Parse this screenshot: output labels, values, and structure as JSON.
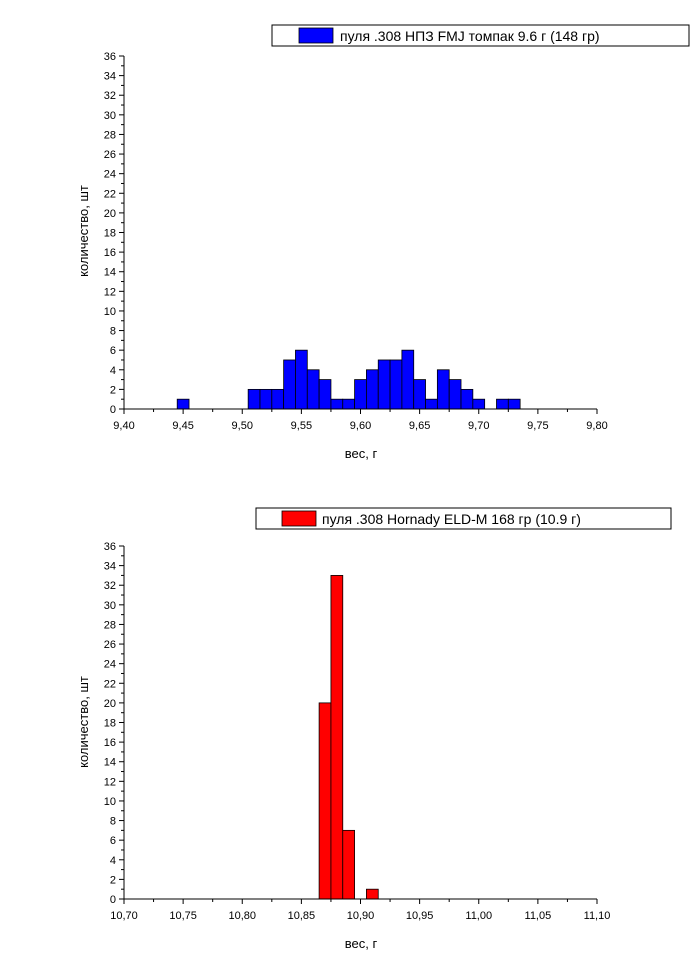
{
  "chart_data": [
    {
      "type": "bar",
      "legend": "пуля .308 НПЗ FMJ томпак 9.6 г (148 гр)",
      "legend_position": "top-right",
      "color": "#0000ff",
      "xlabel": "вес, г",
      "ylabel": "количество, шт",
      "xlim": [
        9.4,
        9.8
      ],
      "ylim": [
        0,
        36
      ],
      "bin_width": 0.01,
      "x_ticks": [
        "9,40",
        "9,45",
        "9,50",
        "9,55",
        "9,60",
        "9,65",
        "9,70",
        "9,75",
        "9,80"
      ],
      "y_ticks": [
        "0",
        "2",
        "4",
        "6",
        "8",
        "10",
        "12",
        "14",
        "16",
        "18",
        "20",
        "22",
        "24",
        "26",
        "28",
        "30",
        "32",
        "34",
        "36"
      ],
      "bins": [
        {
          "x": 9.45,
          "count": 1
        },
        {
          "x": 9.51,
          "count": 2
        },
        {
          "x": 9.52,
          "count": 2
        },
        {
          "x": 9.53,
          "count": 2
        },
        {
          "x": 9.54,
          "count": 5
        },
        {
          "x": 9.55,
          "count": 6
        },
        {
          "x": 9.56,
          "count": 4
        },
        {
          "x": 9.57,
          "count": 3
        },
        {
          "x": 9.58,
          "count": 1
        },
        {
          "x": 9.59,
          "count": 1
        },
        {
          "x": 9.6,
          "count": 3
        },
        {
          "x": 9.61,
          "count": 4
        },
        {
          "x": 9.62,
          "count": 5
        },
        {
          "x": 9.63,
          "count": 5
        },
        {
          "x": 9.64,
          "count": 6
        },
        {
          "x": 9.65,
          "count": 3
        },
        {
          "x": 9.66,
          "count": 1
        },
        {
          "x": 9.67,
          "count": 4
        },
        {
          "x": 9.68,
          "count": 3
        },
        {
          "x": 9.69,
          "count": 2
        },
        {
          "x": 9.7,
          "count": 1
        },
        {
          "x": 9.72,
          "count": 1
        },
        {
          "x": 9.73,
          "count": 1
        }
      ]
    },
    {
      "type": "bar",
      "legend": "пуля .308 Hornady ELD-M 168 гр (10.9 г)",
      "legend_position": "top-right",
      "color": "#ff0000",
      "xlabel": "вес, г",
      "ylabel": "количество, шт",
      "xlim": [
        10.7,
        11.1
      ],
      "ylim": [
        0,
        36
      ],
      "bin_width": 0.01,
      "x_ticks": [
        "10,70",
        "10,75",
        "10,80",
        "10,85",
        "10,90",
        "10,95",
        "11,00",
        "11,05",
        "11,10"
      ],
      "y_ticks": [
        "0",
        "2",
        "4",
        "6",
        "8",
        "10",
        "12",
        "14",
        "16",
        "18",
        "20",
        "22",
        "24",
        "26",
        "28",
        "30",
        "32",
        "34",
        "36"
      ],
      "bins": [
        {
          "x": 10.87,
          "count": 20
        },
        {
          "x": 10.88,
          "count": 33
        },
        {
          "x": 10.89,
          "count": 7
        },
        {
          "x": 10.91,
          "count": 1
        }
      ]
    }
  ]
}
